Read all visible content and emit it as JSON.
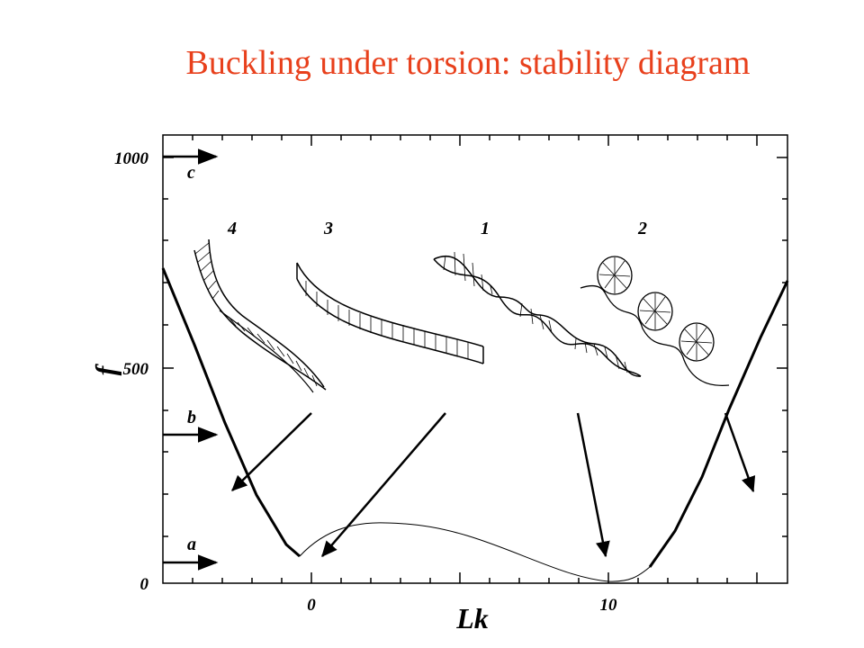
{
  "title": "Buckling under torsion: stability diagram",
  "chart": {
    "xlabel": "Lk",
    "ylabel": "f",
    "x_ticks": [
      "0",
      "10"
    ],
    "y_ticks": [
      "1000",
      "500",
      "0"
    ],
    "force_levels": [
      "c",
      "b",
      "a"
    ],
    "shape_numbers": [
      "4",
      "3",
      "1",
      "2"
    ]
  }
}
